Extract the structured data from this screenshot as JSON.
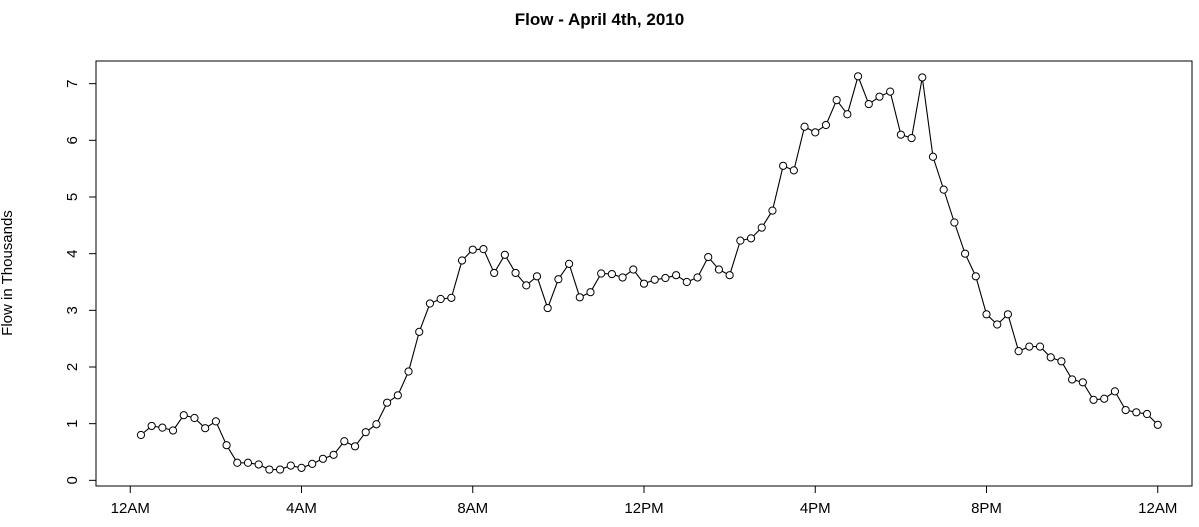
{
  "chart_data": {
    "type": "line",
    "title": "Flow - April 4th, 2010",
    "xlabel": "",
    "ylabel": "Flow in Thousands",
    "x_unit": "hours since 12AM",
    "xlim": [
      -0.8,
      24.8
    ],
    "ylim": [
      -0.1,
      7.4
    ],
    "x_ticks": [
      {
        "value": 0,
        "label": "12AM"
      },
      {
        "value": 4,
        "label": "4AM"
      },
      {
        "value": 8,
        "label": "8AM"
      },
      {
        "value": 12,
        "label": "12PM"
      },
      {
        "value": 16,
        "label": "4PM"
      },
      {
        "value": 20,
        "label": "8PM"
      },
      {
        "value": 24,
        "label": "12AM"
      }
    ],
    "y_ticks": [
      {
        "value": 0,
        "label": "0"
      },
      {
        "value": 1,
        "label": "1"
      },
      {
        "value": 2,
        "label": "2"
      },
      {
        "value": 3,
        "label": "3"
      },
      {
        "value": 4,
        "label": "4"
      },
      {
        "value": 5,
        "label": "5"
      },
      {
        "value": 6,
        "label": "6"
      },
      {
        "value": 7,
        "label": "7"
      }
    ],
    "grid": false,
    "series": [
      {
        "marker": "open-circle",
        "color": "#000000",
        "x": [
          0.25,
          0.5,
          0.75,
          1,
          1.25,
          1.5,
          1.75,
          2,
          2.25,
          2.5,
          2.75,
          3,
          3.25,
          3.5,
          3.75,
          4,
          4.25,
          4.5,
          4.75,
          5,
          5.25,
          5.5,
          5.75,
          6,
          6.25,
          6.5,
          6.75,
          7,
          7.25,
          7.5,
          7.75,
          8,
          8.25,
          8.5,
          8.75,
          9,
          9.25,
          9.5,
          9.75,
          10,
          10.25,
          10.5,
          10.75,
          11,
          11.25,
          11.5,
          11.75,
          12,
          12.25,
          12.5,
          12.75,
          13,
          13.25,
          13.5,
          13.75,
          14,
          14.25,
          14.5,
          14.75,
          15,
          15.25,
          15.5,
          15.75,
          16,
          16.25,
          16.5,
          16.75,
          17,
          17.25,
          17.5,
          17.75,
          18,
          18.25,
          18.5,
          18.75,
          19,
          19.25,
          19.5,
          19.75,
          20,
          20.25,
          20.5,
          20.75,
          21,
          21.25,
          21.5,
          21.75,
          22,
          22.25,
          22.5,
          22.75,
          23,
          23.25,
          23.5,
          23.75,
          24
        ],
        "values": [
          0.8,
          0.96,
          0.93,
          0.88,
          1.15,
          1.1,
          0.92,
          1.04,
          0.62,
          0.31,
          0.31,
          0.28,
          0.19,
          0.19,
          0.26,
          0.22,
          0.29,
          0.38,
          0.45,
          0.69,
          0.6,
          0.85,
          0.99,
          1.37,
          1.5,
          1.92,
          2.62,
          3.12,
          3.2,
          3.22,
          3.88,
          4.07,
          4.08,
          3.66,
          3.98,
          3.66,
          3.44,
          3.6,
          3.04,
          3.55,
          3.82,
          3.23,
          3.32,
          3.65,
          3.64,
          3.58,
          3.72,
          3.47,
          3.54,
          3.57,
          3.62,
          3.5,
          3.58,
          3.94,
          3.72,
          3.62,
          4.23,
          4.27,
          4.46,
          4.76,
          5.55,
          5.47,
          6.24,
          6.14,
          6.27,
          6.71,
          6.46,
          7.13,
          6.64,
          6.77,
          6.86,
          6.1,
          6.04,
          7.11,
          5.71,
          5.13,
          4.55,
          4.0,
          3.6,
          2.93,
          2.75,
          2.93,
          2.28,
          2.36,
          2.36,
          2.17,
          2.1,
          1.78,
          1.73,
          1.42,
          1.44,
          1.57,
          1.24,
          1.2,
          1.17,
          0.98
        ]
      }
    ]
  }
}
